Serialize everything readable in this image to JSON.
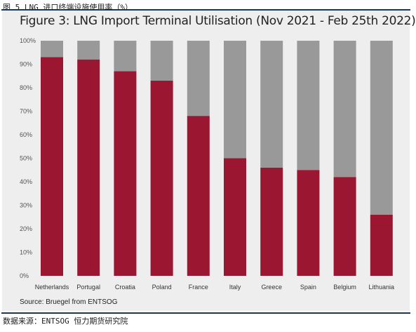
{
  "header": {
    "caption": "图 5 LNG 进口终端设施使用率（%）"
  },
  "footer": {
    "source": "数据来源：ENTSOG 恒力期货研究院"
  },
  "colors": {
    "value": "#9b1630",
    "remainder": "#999999",
    "background": "#eeeeee"
  },
  "chart_data": {
    "type": "bar",
    "stacked": true,
    "title": "Figure 3: LNG Import Terminal Utilisation (Nov 2021 - Feb 25th 2022)",
    "source_note": "Source: Bruegel from ENTSOG",
    "xlabel": "",
    "ylabel": "",
    "ylim": [
      0,
      100
    ],
    "yticks": [
      "0%",
      "10%",
      "20%",
      "30%",
      "40%",
      "50%",
      "60%",
      "70%",
      "80%",
      "90%",
      "100%"
    ],
    "grid": false,
    "legend": "none",
    "categories": [
      "Netherlands",
      "Portugal",
      "Croatia",
      "Poland",
      "France",
      "Italy",
      "Greece",
      "Spain",
      "Belgium",
      "Lithuania"
    ],
    "series": [
      {
        "values": [
          93,
          92,
          87,
          83,
          68,
          50,
          46,
          45,
          42,
          26
        ]
      },
      {
        "values": [
          7,
          8,
          13,
          17,
          32,
          50,
          54,
          55,
          58,
          74
        ]
      }
    ]
  }
}
